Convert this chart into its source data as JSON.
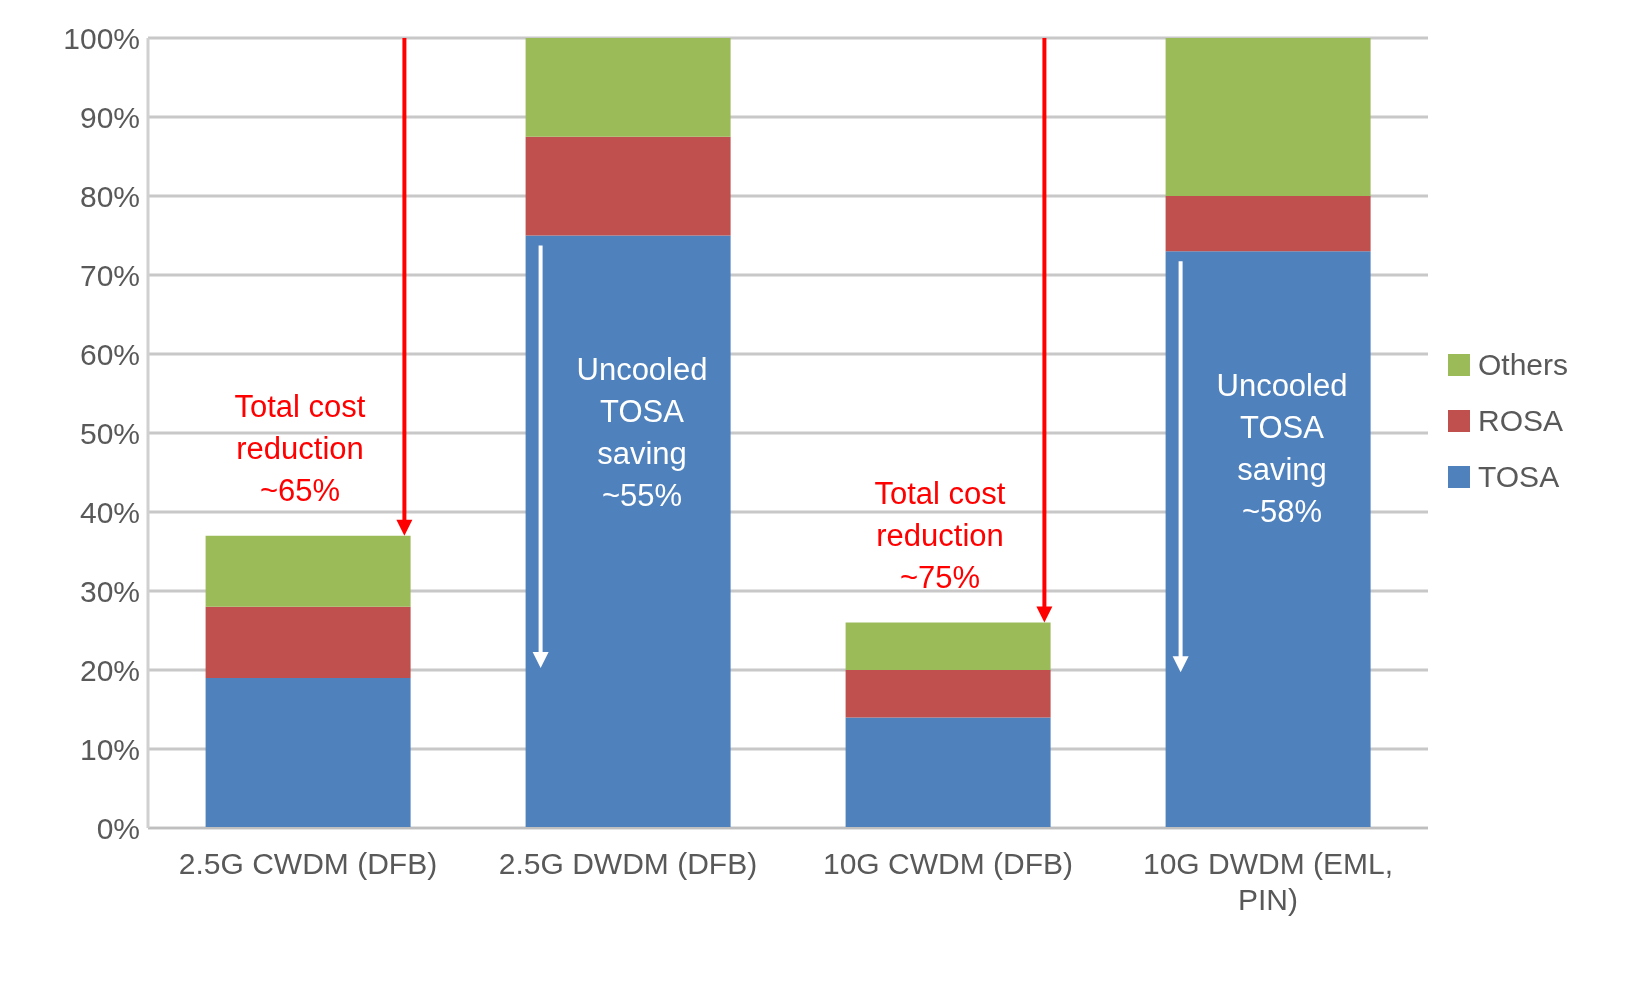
{
  "chart_data": {
    "type": "bar",
    "stacked": true,
    "categories": [
      "2.5G CWDM (DFB)",
      "2.5G DWDM (DFB)",
      "10G CWDM (DFB)",
      "10G DWDM (EML, PIN)"
    ],
    "series": [
      {
        "name": "TOSA",
        "color": "#4f81bd",
        "values": [
          19,
          75,
          14,
          73
        ]
      },
      {
        "name": "ROSA",
        "color": "#c0504d",
        "values": [
          9,
          12.5,
          6,
          7
        ]
      },
      {
        "name": "Others",
        "color": "#9bbb59",
        "values": [
          9,
          12.5,
          6,
          20
        ]
      }
    ],
    "ylim": [
      0,
      100
    ],
    "yticks": [
      {
        "value": 0,
        "label": "0%"
      },
      {
        "value": 10,
        "label": "10%"
      },
      {
        "value": 20,
        "label": "20%"
      },
      {
        "value": 30,
        "label": "30%"
      },
      {
        "value": 40,
        "label": "40%"
      },
      {
        "value": 50,
        "label": "50%"
      },
      {
        "value": 60,
        "label": "60%"
      },
      {
        "value": 70,
        "label": "70%"
      },
      {
        "value": 80,
        "label": "80%"
      },
      {
        "value": 90,
        "label": "90%"
      },
      {
        "value": 100,
        "label": "100%"
      }
    ],
    "grid": "y",
    "legend": "right",
    "annotations": [
      "Total cost reduction ~65%",
      "Uncooled TOSA saving ~55%",
      "Total cost reduction ~75%",
      "Uncooled TOSA saving ~58%"
    ]
  }
}
